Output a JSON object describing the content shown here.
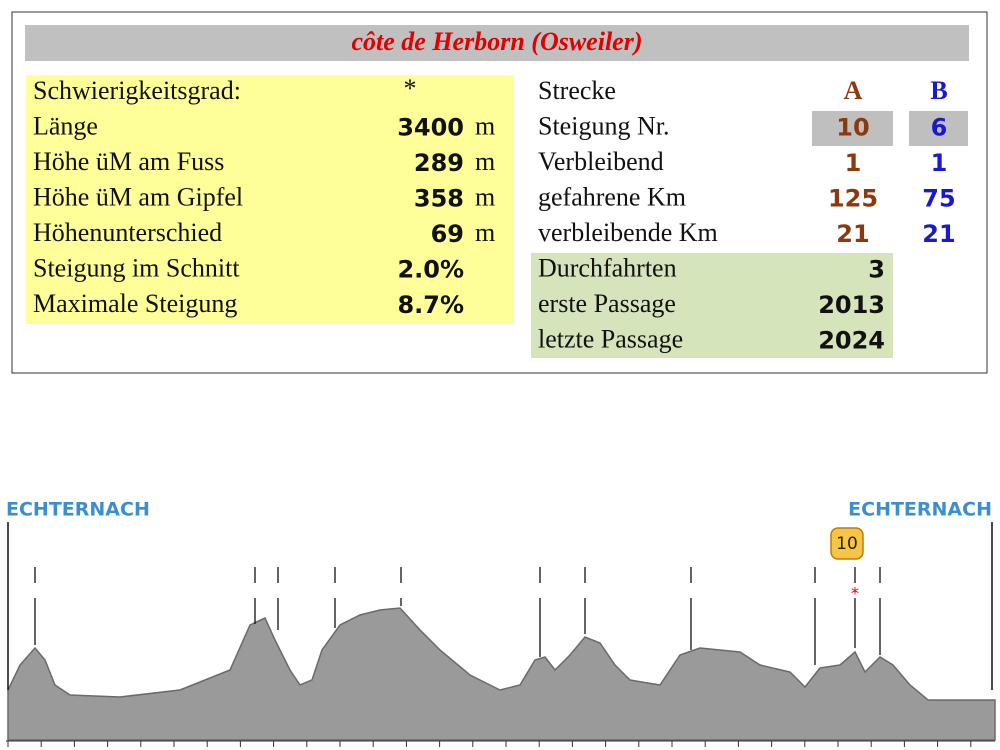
{
  "title": "côte de Herborn (Osweiler)",
  "details": {
    "rows": [
      {
        "label": "Schwierigkeitsgrad:",
        "value": "*"
      },
      {
        "label": "Länge",
        "value": "3400",
        "unit": "m"
      },
      {
        "label": "Höhe üM am Fuss",
        "value": "289",
        "unit": "m"
      },
      {
        "label": "Höhe üM am Gipfel",
        "value": "358",
        "unit": "m"
      },
      {
        "label": "Höhenunterschied",
        "value": "69",
        "unit": "m"
      },
      {
        "label": "Steigung im Schnitt",
        "value": "2.0%"
      },
      {
        "label": "Maximale Steigung",
        "value": "8.7%"
      }
    ]
  },
  "routes": {
    "header": [
      "Strecke",
      "A",
      "B"
    ],
    "rows": [
      [
        "Steigung Nr.",
        "10",
        "6"
      ],
      [
        "Verbleibend",
        "1",
        "1"
      ],
      [
        "gefahrene Km",
        "125",
        "75"
      ],
      [
        "verbleibende Km",
        "21",
        "21"
      ]
    ]
  },
  "passages": {
    "rows": [
      [
        "Durchfahrten",
        "3"
      ],
      [
        "erste Passage",
        "2013"
      ],
      [
        "letzte Passage",
        "2024"
      ]
    ]
  },
  "profile": {
    "start_label": "ECHTERNACH",
    "end_label": "ECHTERNACH",
    "climb_badge": "10",
    "climb_marker": "*"
  }
}
